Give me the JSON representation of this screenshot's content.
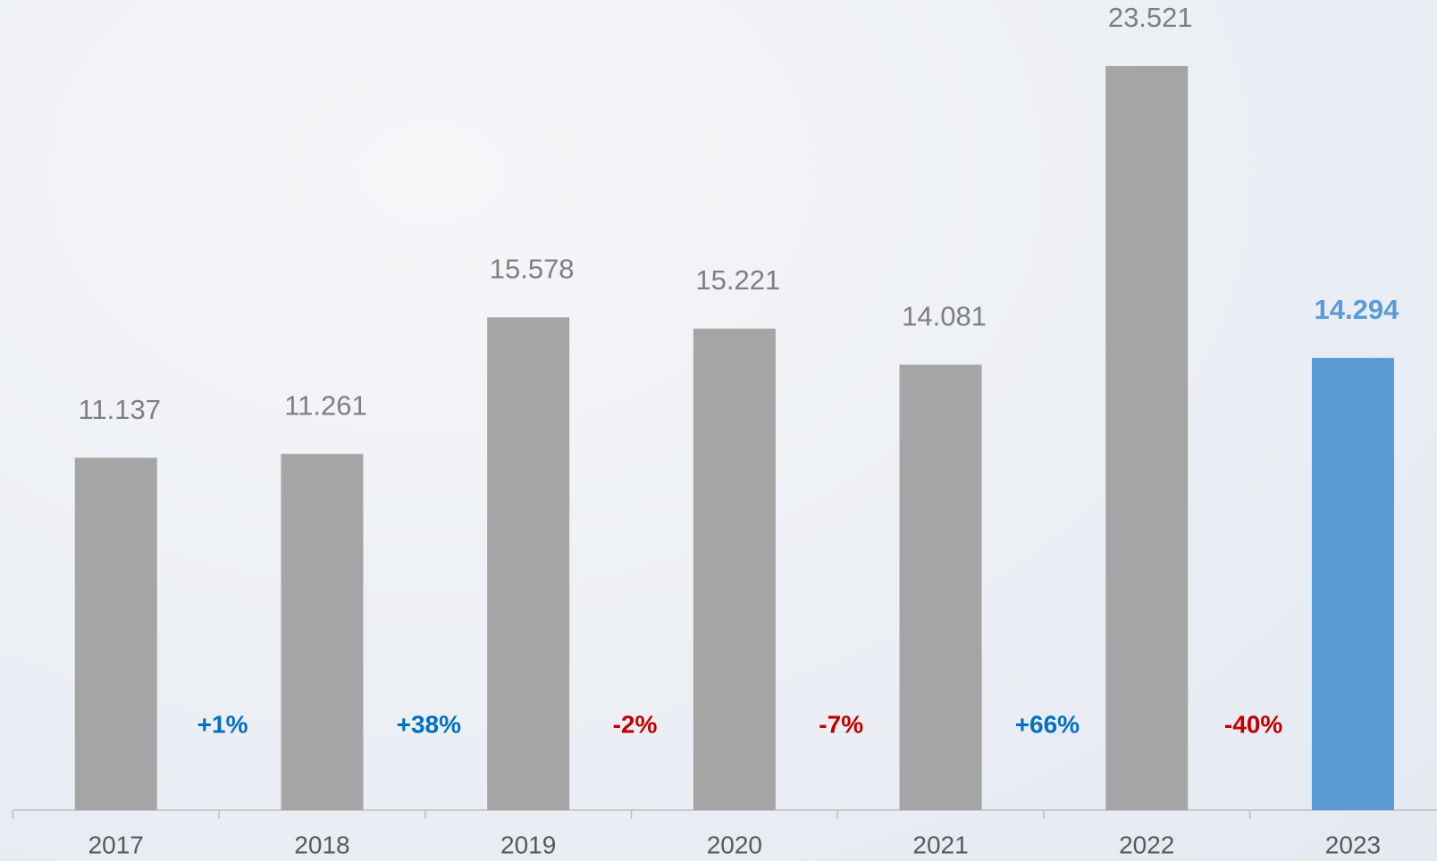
{
  "chart_data": {
    "type": "bar",
    "categories": [
      "2017",
      "2018",
      "2019",
      "2020",
      "2021",
      "2022",
      "2023"
    ],
    "values": [
      11.137,
      11.261,
      15.578,
      15.221,
      14.081,
      23.521,
      14.294
    ],
    "colors": [
      "#a5a5a5",
      "#a5a5a5",
      "#a5a5a5",
      "#a5a5a5",
      "#a5a5a5",
      "#a5a5a5",
      "#5b9bd5"
    ],
    "label_colors": [
      "#7f7f7f",
      "#7f7f7f",
      "#7f7f7f",
      "#7f7f7f",
      "#7f7f7f",
      "#7f7f7f",
      "#5b9bd5"
    ],
    "ylim": [
      0,
      24
    ],
    "annotations": [
      {
        "text": "+1%",
        "color": "#0070c0"
      },
      {
        "text": "+38%",
        "color": "#0070c0"
      },
      {
        "text": "-2%",
        "color": "#c00000"
      },
      {
        "text": "-7%",
        "color": "#c00000"
      },
      {
        "text": "+66%",
        "color": "#0070c0"
      },
      {
        "text": "-40%",
        "color": "#c00000"
      }
    ]
  }
}
